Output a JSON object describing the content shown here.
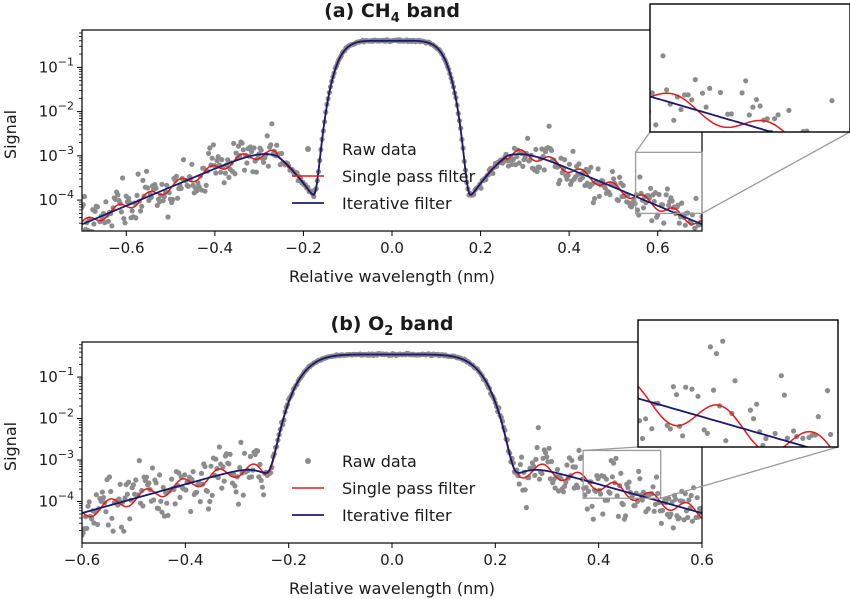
{
  "figure": {
    "colors": {
      "raw": "#8c8c8c",
      "single": "#e41a1c",
      "iterative": "#1a1a6e",
      "frame": "#000000",
      "inset_marker": "#9a9a9a"
    }
  },
  "chart_data": [
    {
      "id": "a",
      "type": "scatter",
      "title_prefix": "(a) CH",
      "title_sub": "4",
      "title_suffix": " band",
      "xlabel": "Relative wavelength (nm)",
      "ylabel": "Signal",
      "xlim": [
        -0.7,
        0.7
      ],
      "ylim": [
        2e-05,
        0.7
      ],
      "yscale": "log",
      "xticks": [
        -0.6,
        -0.4,
        -0.2,
        0.0,
        0.2,
        0.4,
        0.6
      ],
      "xtick_labels": [
        "−0.6",
        "−0.4",
        "−0.2",
        "0.0",
        "0.2",
        "0.4",
        "0.6"
      ],
      "ytick_exponents": [
        "−1",
        "−2",
        "−3",
        "−4"
      ],
      "ytick_values": [
        0.1,
        0.01,
        0.001,
        0.0001
      ],
      "legend": {
        "placement": "lower-center",
        "entries": [
          "Raw data",
          "Single pass filter",
          "Iterative filter"
        ]
      },
      "profile": {
        "peak": 0.4,
        "core_halfwidth": 0.12,
        "edge": 0.26,
        "wing_width": 0.03,
        "wing_amplitude": 0.002,
        "wing_length": 0.62
      },
      "series": [
        {
          "name": "Raw data",
          "kind": "points",
          "noise_dex": 0.22,
          "ripple_dex": 0.12
        },
        {
          "name": "Single pass filter",
          "kind": "line",
          "ripple_dex": 0.1
        },
        {
          "name": "Iterative filter",
          "kind": "line"
        }
      ],
      "inset": {
        "xlim": [
          0.55,
          0.7
        ],
        "ylim": [
          5e-05,
          0.0012
        ]
      }
    },
    {
      "id": "b",
      "type": "scatter",
      "title_prefix": "(b) O",
      "title_sub": "2",
      "title_suffix": " band",
      "xlabel": "Relative wavelength (nm)",
      "ylabel": "Signal",
      "xlim": [
        -0.6,
        0.6
      ],
      "ylim": [
        1e-05,
        0.7
      ],
      "yscale": "log",
      "xticks": [
        -0.6,
        -0.4,
        -0.2,
        0.0,
        0.2,
        0.4,
        0.6
      ],
      "xtick_labels": [
        "−0.6",
        "−0.4",
        "−0.2",
        "0.0",
        "0.2",
        "0.4",
        "0.6"
      ],
      "ytick_exponents": [
        "−1",
        "−2",
        "−3",
        "−4"
      ],
      "ytick_values": [
        0.1,
        0.01,
        0.001,
        0.0001
      ],
      "legend": {
        "placement": "lower-center",
        "entries": [
          "Raw data",
          "Single pass filter",
          "Iterative filter"
        ]
      },
      "profile": {
        "peak": 0.35,
        "core_halfwidth": 0.17,
        "edge": 0.245,
        "wing_width": 0.02,
        "wing_amplitude": 0.0009,
        "wing_length": 0.75
      },
      "series": [
        {
          "name": "Raw data",
          "kind": "points",
          "noise_dex": 0.35,
          "ripple_dex": 0.18
        },
        {
          "name": "Single pass filter",
          "kind": "line",
          "ripple_dex": 0.15
        },
        {
          "name": "Iterative filter",
          "kind": "line"
        }
      ],
      "inset": {
        "xlim": [
          0.37,
          0.52
        ],
        "ylim": [
          0.00012,
          0.0017
        ]
      }
    }
  ]
}
